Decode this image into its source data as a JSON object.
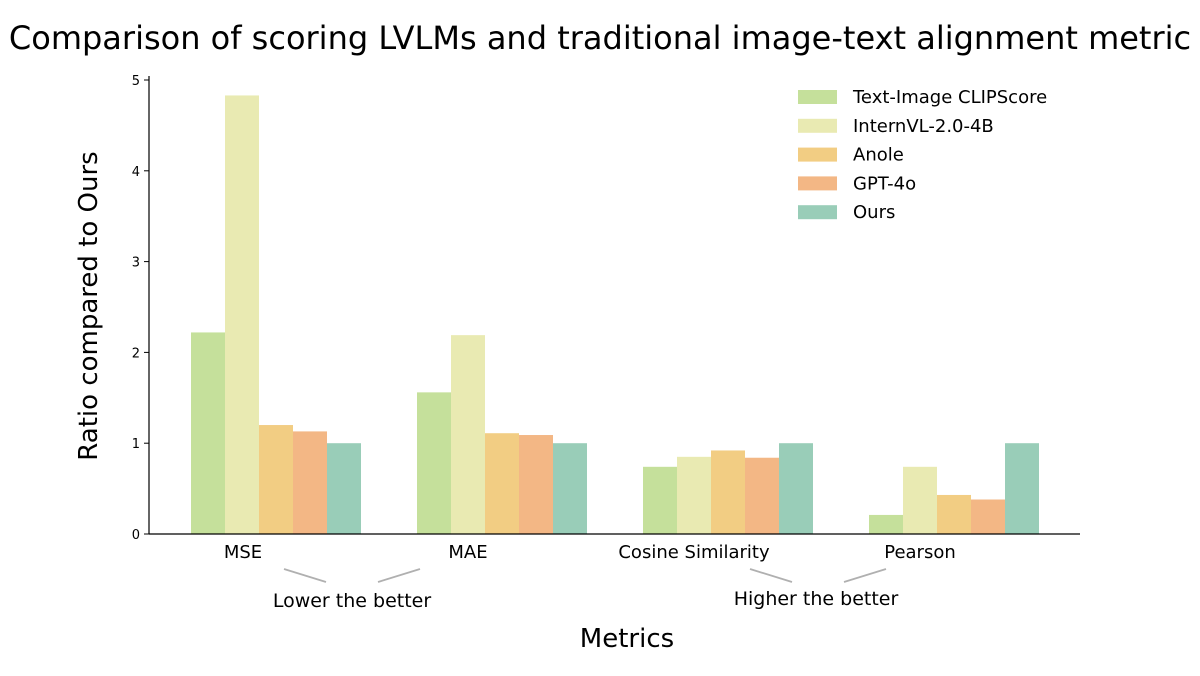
{
  "chart_data": {
    "type": "bar",
    "title": "Comparison of scoring LVLMs and traditional image-text alignment metric",
    "xlabel": "Metrics",
    "ylabel": "Ratio compared to Ours",
    "ylim": [
      0,
      5
    ],
    "yticks": [
      "0",
      "1",
      "2",
      "3",
      "4",
      "5"
    ],
    "grid": false,
    "legend_position": "top-right",
    "categories": [
      "MSE",
      "MAE",
      "Cosine Similarity",
      "Pearson"
    ],
    "series": [
      {
        "name": "Text-Image CLIPScore",
        "color": "#c5e09b",
        "values": [
          2.22,
          1.56,
          0.74,
          0.21
        ]
      },
      {
        "name": "InternVL-2.0-4B",
        "color": "#e9eab2",
        "values": [
          4.83,
          2.19,
          0.85,
          0.74
        ]
      },
      {
        "name": "Anole",
        "color": "#f2cd83",
        "values": [
          1.2,
          1.11,
          0.92,
          0.43
        ]
      },
      {
        "name": "GPT-4o",
        "color": "#f3b785",
        "values": [
          1.13,
          1.09,
          0.84,
          0.38
        ]
      },
      {
        "name": "Ours",
        "color": "#99cdb8",
        "values": [
          1.0,
          1.0,
          1.0,
          1.0
        ]
      }
    ],
    "annotations": [
      {
        "text": "Lower the better",
        "categories": [
          "MSE",
          "MAE"
        ]
      },
      {
        "text": "Higher the better",
        "categories": [
          "Cosine Similarity",
          "Pearson"
        ]
      }
    ]
  }
}
